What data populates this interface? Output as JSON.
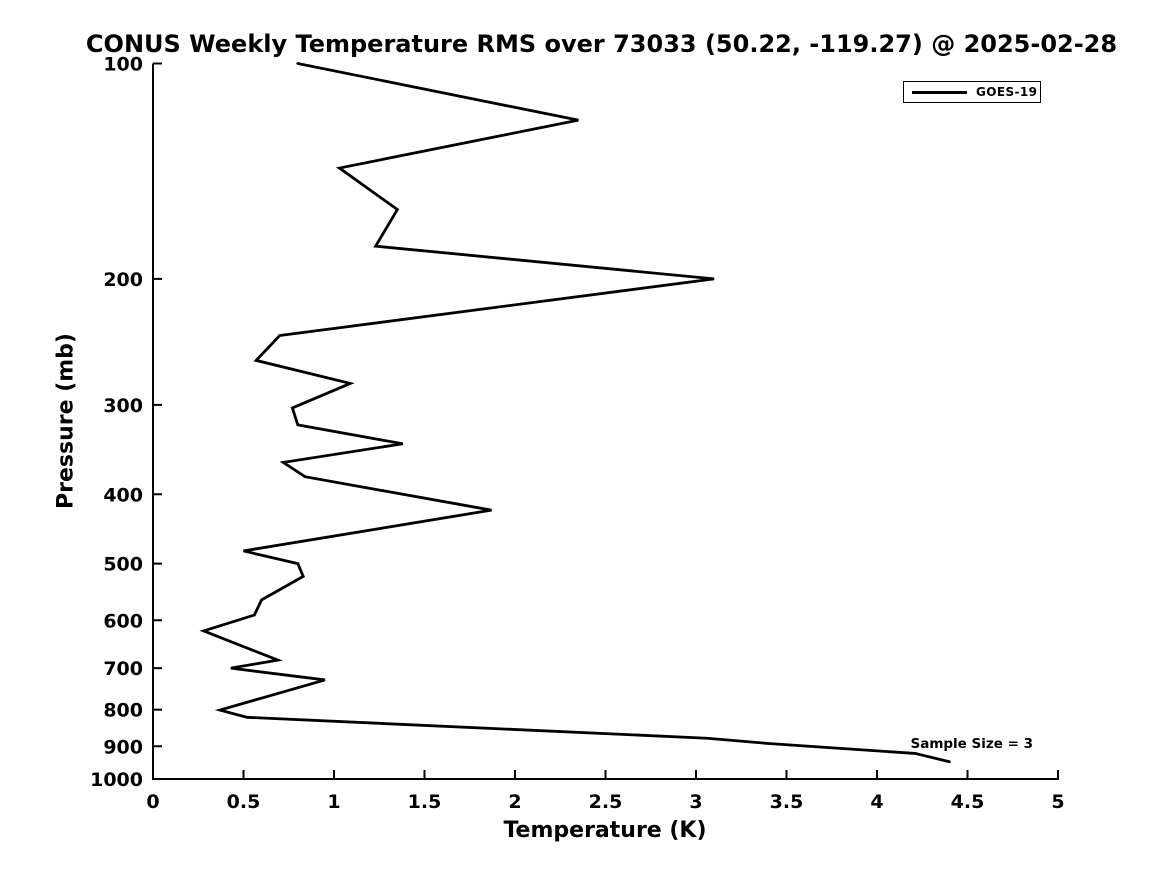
{
  "title": "CONUS Weekly Temperature RMS over 73033 (50.22, -119.27) @ 2025-02-28",
  "chart_data": {
    "type": "line",
    "title": "CONUS Weekly Temperature RMS over 73033 (50.22, -119.27) @ 2025-02-28",
    "xlabel": "Temperature (K)",
    "ylabel": "Pressure (mb)",
    "xlim": [
      0,
      5
    ],
    "ylim": [
      100,
      1000
    ],
    "y_scale": "log",
    "y_inverted": true,
    "grid": false,
    "x_ticks": [
      0,
      0.5,
      1,
      1.5,
      2,
      2.5,
      3,
      3.5,
      4,
      4.5,
      5
    ],
    "y_ticks": [
      100,
      200,
      300,
      400,
      500,
      600,
      700,
      800,
      900,
      1000
    ],
    "legend": {
      "position": "top-right",
      "entries": [
        {
          "label": "GOES-19",
          "color": "#000000",
          "line_width": 3
        }
      ]
    },
    "annotation": {
      "text": "Sample Size = 3"
    },
    "series": [
      {
        "name": "GOES-19",
        "color": "#000000",
        "pressure_mb": [
          100,
          120,
          140,
          160,
          180,
          200,
          240,
          260,
          280,
          303,
          320,
          340,
          361,
          378,
          421,
          480,
          500,
          521,
          562,
          590,
          621,
          682,
          700,
          727,
          801,
          820,
          877,
          892,
          921,
          946
        ],
        "temperature_k": [
          0.8,
          2.35,
          1.03,
          1.35,
          1.23,
          3.1,
          0.7,
          0.57,
          1.09,
          0.77,
          0.8,
          1.38,
          0.72,
          0.84,
          1.87,
          0.5,
          0.8,
          0.83,
          0.6,
          0.56,
          0.28,
          0.69,
          0.43,
          0.95,
          0.37,
          0.52,
          3.06,
          3.4,
          4.21,
          4.4
        ]
      }
    ]
  },
  "colors": {
    "line": "#000000",
    "background": "#ffffff",
    "text": "#000000"
  }
}
